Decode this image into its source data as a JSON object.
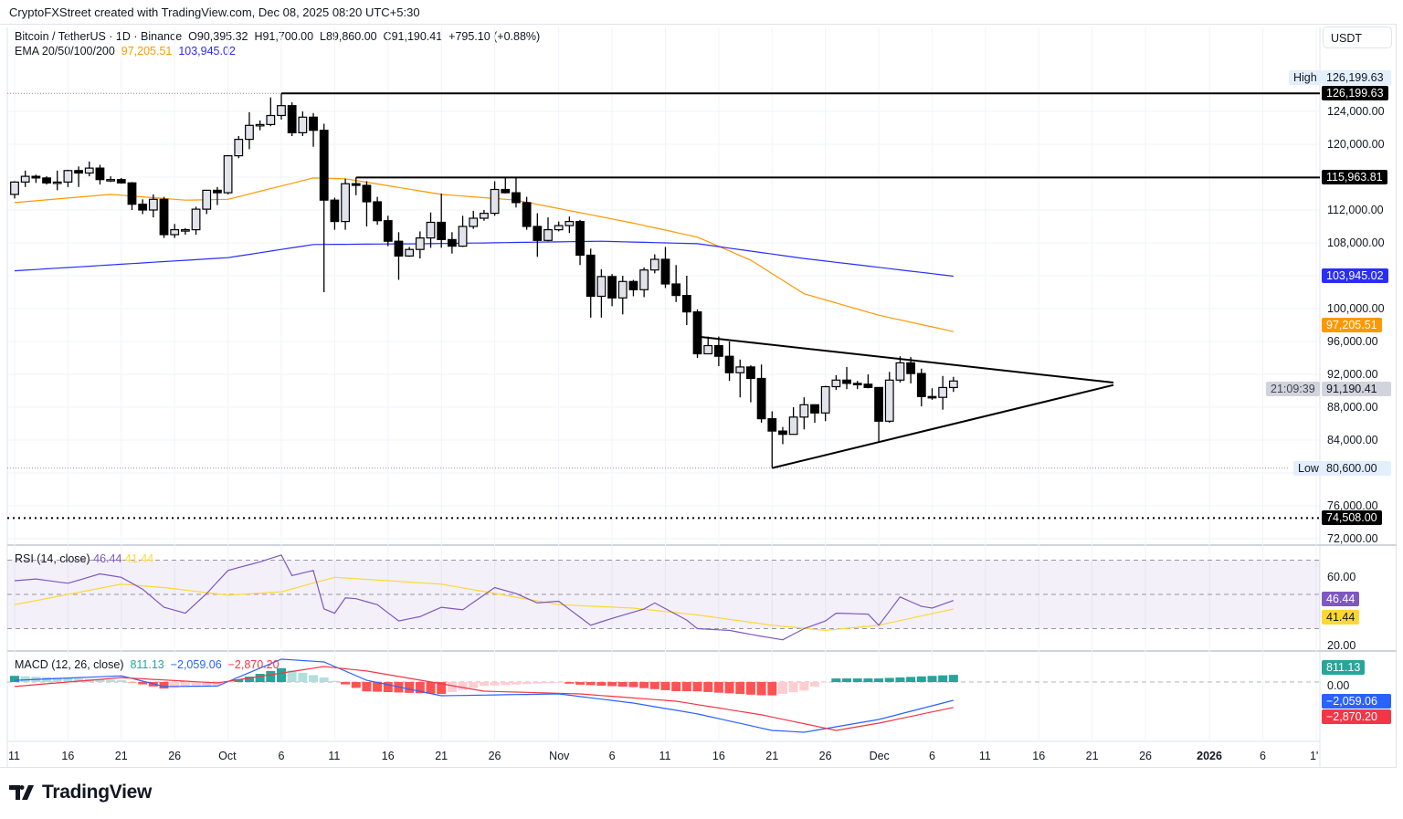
{
  "credit": "CryptoFXStreet created with TradingView.com, Dec 08, 2025 08:20 UTC+5:30",
  "legend": {
    "symbol": "Bitcoin / TetherUS · 1D · Binance",
    "open": "O90,395.32",
    "high": "H91,700.00",
    "low": "L89,860.00",
    "close": "C91,190.41",
    "change": "+795.10 (+0.88%)",
    "ema_label": "EMA 20/50/100/200",
    "ema50_value": "97,205.51",
    "ema200_value": "103,945.02"
  },
  "currency": "USDT",
  "colors": {
    "ema50": "#ff9800",
    "ema200": "#2a2ef5",
    "rsi": "#7e57c2",
    "rsi_ma": "#fdd835",
    "macd": "#2962ff",
    "signal": "#f23645",
    "hist_up_strong": "#26a69a",
    "hist_up_weak": "#b2dfdb",
    "hist_dn_strong": "#ff5252",
    "hist_dn_weak": "#ffcdd2",
    "candle_up": "#e0e3eb",
    "candle_down": "#000000"
  },
  "logo": {
    "text": "TradingView"
  },
  "chart_data": [
    {
      "type": "candlestick",
      "name": "Bitcoin / TetherUS",
      "interval": "1D",
      "start_date": "2025-09-11",
      "ylim": [
        70000,
        128000
      ],
      "y_scale": "linear",
      "grid": true,
      "price_ticks": [
        "124,000.00",
        "120,000.00",
        "112,000.00",
        "108,000.00",
        "100,000.00",
        "96,000.00",
        "92,000.00",
        "88,000.00",
        "84,000.00",
        "76,000.00",
        "72,000.00"
      ],
      "price_tick_values": [
        124000,
        120000,
        112000,
        108000,
        100000,
        96000,
        92000,
        88000,
        84000,
        76000,
        72000
      ],
      "ohlc": [
        [
          113900,
          115500,
          113400,
          115400
        ],
        [
          115400,
          116800,
          114800,
          116100
        ],
        [
          116100,
          116300,
          115300,
          115900
        ],
        [
          115900,
          116100,
          115100,
          115300
        ],
        [
          115300,
          116800,
          114400,
          115400
        ],
        [
          115400,
          116900,
          114800,
          116800
        ],
        [
          116800,
          117300,
          114800,
          116500
        ],
        [
          116500,
          117900,
          116100,
          117100
        ],
        [
          117100,
          117500,
          115100,
          115700
        ],
        [
          115700,
          116100,
          115400,
          115700
        ],
        [
          115700,
          115900,
          115200,
          115300
        ],
        [
          115300,
          115400,
          112000,
          112700
        ],
        [
          112700,
          113300,
          111500,
          112000
        ],
        [
          112000,
          113900,
          111100,
          113300
        ],
        [
          113300,
          113600,
          108600,
          109000
        ],
        [
          109000,
          110300,
          108600,
          109600
        ],
        [
          109600,
          109800,
          109000,
          109600
        ],
        [
          109600,
          112400,
          109000,
          112100
        ],
        [
          112100,
          114400,
          111500,
          114400
        ],
        [
          114400,
          114800,
          112600,
          114100
        ],
        [
          114100,
          118600,
          113900,
          118600
        ],
        [
          118600,
          121000,
          118300,
          120600
        ],
        [
          120600,
          123900,
          119400,
          122300
        ],
        [
          122300,
          122900,
          121700,
          122400
        ],
        [
          122400,
          125700,
          122200,
          123500
        ],
        [
          123500,
          126199.63,
          123000,
          124700
        ],
        [
          124700,
          125100,
          121000,
          121400
        ],
        [
          121400,
          124000,
          121000,
          123300
        ],
        [
          123300,
          123800,
          119700,
          121700
        ],
        [
          121700,
          122500,
          102000,
          113200
        ],
        [
          113200,
          113500,
          109600,
          110600
        ],
        [
          110600,
          115800,
          109600,
          115200
        ],
        [
          115200,
          115963.81,
          113800,
          115000
        ],
        [
          115000,
          115500,
          110000,
          113000
        ],
        [
          113000,
          113600,
          110200,
          110700
        ],
        [
          110700,
          111300,
          107600,
          108200
        ],
        [
          108200,
          109300,
          103500,
          106400
        ],
        [
          106400,
          107500,
          106300,
          107200
        ],
        [
          107200,
          109400,
          106100,
          108600
        ],
        [
          108600,
          111700,
          107400,
          110500
        ],
        [
          110500,
          114000,
          107400,
          108400
        ],
        [
          108400,
          109300,
          106700,
          107600
        ],
        [
          107600,
          111300,
          107500,
          110000
        ],
        [
          110000,
          111900,
          109700,
          111000
        ],
        [
          111000,
          112000,
          110700,
          111600
        ],
        [
          111600,
          115500,
          111300,
          114500
        ],
        [
          114500,
          115963.81,
          114000,
          114100
        ],
        [
          114100,
          115900,
          112300,
          112900
        ],
        [
          112900,
          113600,
          109600,
          110000
        ],
        [
          110000,
          111600,
          106300,
          108300
        ],
        [
          108300,
          111100,
          108200,
          109600
        ],
        [
          109600,
          110600,
          109400,
          110100
        ],
        [
          110100,
          111200,
          109200,
          110600
        ],
        [
          110600,
          110800,
          105300,
          106500
        ],
        [
          106500,
          107300,
          98900,
          101500
        ],
        [
          101500,
          104800,
          98900,
          103900
        ],
        [
          103900,
          104200,
          100300,
          101300
        ],
        [
          101300,
          104000,
          99300,
          103300
        ],
        [
          103300,
          103500,
          101500,
          102300
        ],
        [
          102300,
          105000,
          101400,
          104700
        ],
        [
          104700,
          106600,
          104300,
          106000
        ],
        [
          106000,
          107500,
          102500,
          103000
        ],
        [
          103000,
          105300,
          100800,
          101600
        ],
        [
          101600,
          104000,
          98000,
          99600
        ],
        [
          99600,
          99900,
          94000,
          94500
        ],
        [
          94500,
          96600,
          94600,
          95500
        ],
        [
          95500,
          96600,
          93000,
          94200
        ],
        [
          94200,
          96000,
          91200,
          92200
        ],
        [
          92200,
          93800,
          89200,
          92900
        ],
        [
          92900,
          93100,
          88600,
          91500
        ],
        [
          91500,
          93200,
          86100,
          86600
        ],
        [
          86600,
          87500,
          80600,
          85100
        ],
        [
          85100,
          85600,
          83500,
          84700
        ],
        [
          84700,
          88000,
          84700,
          86800
        ],
        [
          86800,
          89200,
          85300,
          88300
        ],
        [
          88300,
          88300,
          86100,
          87300
        ],
        [
          87300,
          90600,
          86300,
          90500
        ],
        [
          90500,
          91900,
          90100,
          91300
        ],
        [
          91300,
          92900,
          90200,
          90900
        ],
        [
          90900,
          91200,
          90200,
          90800
        ],
        [
          90800,
          92000,
          90300,
          90400
        ],
        [
          90400,
          90400,
          83800,
          86300
        ],
        [
          86300,
          92300,
          86100,
          91300
        ],
        [
          91300,
          94200,
          91000,
          93400
        ],
        [
          93400,
          94100,
          90900,
          92100
        ],
        [
          92100,
          92700,
          88100,
          89300
        ],
        [
          89300,
          90300,
          88900,
          89200
        ],
        [
          89200,
          91800,
          87700,
          90400
        ],
        [
          90395.32,
          91700,
          89860,
          91190.41
        ]
      ],
      "ema50": [
        [
          "2025-09-11",
          112900
        ],
        [
          "2025-09-20",
          113900
        ],
        [
          "2025-09-27",
          113200
        ],
        [
          "2025-10-01",
          113300
        ],
        [
          "2025-10-09",
          115900
        ],
        [
          "2025-10-12",
          115800
        ],
        [
          "2025-10-21",
          113900
        ],
        [
          "2025-10-28",
          113200
        ],
        [
          "2025-11-08",
          110400
        ],
        [
          "2025-11-14",
          108700
        ],
        [
          "2025-11-19",
          105900
        ],
        [
          "2025-11-24",
          101800
        ],
        [
          "2025-12-01",
          99200
        ],
        [
          "2025-12-08",
          97205.51
        ]
      ],
      "ema200": [
        [
          "2025-09-11",
          104600
        ],
        [
          "2025-10-01",
          106200
        ],
        [
          "2025-10-09",
          107800
        ],
        [
          "2025-10-20",
          107900
        ],
        [
          "2025-11-05",
          108200
        ],
        [
          "2025-11-14",
          107900
        ],
        [
          "2025-11-24",
          106100
        ],
        [
          "2025-12-08",
          103945.02
        ]
      ],
      "last_price": {
        "value": 91190.41,
        "label": "91,190.41",
        "countdown": "21:09:39"
      },
      "levels": [
        {
          "name": "high",
          "value": 126199.63,
          "label": "126,199.63",
          "from": "2025-10-06",
          "style": "solid",
          "text": "High"
        },
        {
          "name": "resistance",
          "value": 115963.81,
          "label": "115,963.81",
          "from": "2025-10-13",
          "style": "solid"
        },
        {
          "name": "low",
          "value": 80600,
          "label": "80,600.00",
          "style": "dotted",
          "text": "Low"
        },
        {
          "name": "support",
          "value": 74508,
          "label": "74,508.00",
          "style": "dotted"
        }
      ],
      "trendlines": [
        {
          "name": "upper-trendline",
          "from": [
            "2025-11-14",
            96600
          ],
          "to": [
            "2025-12-23",
            91000
          ]
        },
        {
          "name": "lower-trendline",
          "from": [
            "2025-11-21",
            80600
          ],
          "to": [
            "2025-12-23",
            90700
          ]
        }
      ],
      "time_axis": [
        [
          "11",
          "2025-09-11"
        ],
        [
          "16",
          "2025-09-16"
        ],
        [
          "21",
          "2025-09-21"
        ],
        [
          "26",
          "2025-09-26"
        ],
        [
          "Oct",
          "2025-10-01"
        ],
        [
          "6",
          "2025-10-06"
        ],
        [
          "11",
          "2025-10-11"
        ],
        [
          "16",
          "2025-10-16"
        ],
        [
          "21",
          "2025-10-21"
        ],
        [
          "26",
          "2025-10-26"
        ],
        [
          "Nov",
          "2025-11-01"
        ],
        [
          "6",
          "2025-11-06"
        ],
        [
          "11",
          "2025-11-11"
        ],
        [
          "16",
          "2025-11-16"
        ],
        [
          "21",
          "2025-11-21"
        ],
        [
          "26",
          "2025-11-26"
        ],
        [
          "Dec",
          "2025-12-01"
        ],
        [
          "6",
          "2025-12-06"
        ],
        [
          "11",
          "2025-12-11"
        ],
        [
          "16",
          "2025-12-16"
        ],
        [
          "21",
          "2025-12-21"
        ],
        [
          "26",
          "2025-12-26"
        ],
        [
          "2026",
          "2026-01-01"
        ],
        [
          "6",
          "2026-01-06"
        ],
        [
          "1'",
          "2026-01-11"
        ]
      ]
    },
    {
      "type": "line",
      "name": "RSI (14, close)",
      "label": "RSI (14, close)",
      "value": "46.44",
      "ma_value": "41.44",
      "ylim": [
        0,
        100
      ],
      "bands": [
        30,
        50,
        70
      ],
      "ticks": [
        "60.00",
        "20.00"
      ],
      "tick_values": [
        60,
        20
      ],
      "rsi": [
        [
          "2025-09-11",
          58
        ],
        [
          "2025-09-13",
          59
        ],
        [
          "2025-09-16",
          56.5
        ],
        [
          "2025-09-19",
          62
        ],
        [
          "2025-09-21",
          60
        ],
        [
          "2025-09-23",
          53
        ],
        [
          "2025-09-25",
          42.5
        ],
        [
          "2025-09-27",
          39
        ],
        [
          "2025-09-29",
          50.5
        ],
        [
          "2025-10-01",
          64
        ],
        [
          "2025-10-04",
          69
        ],
        [
          "2025-10-06",
          73
        ],
        [
          "2025-10-07",
          61
        ],
        [
          "2025-10-09",
          64
        ],
        [
          "2025-10-10",
          41.5
        ],
        [
          "2025-10-11",
          39
        ],
        [
          "2025-10-12",
          48
        ],
        [
          "2025-10-13",
          47.5
        ],
        [
          "2025-10-15",
          44
        ],
        [
          "2025-10-17",
          34.5
        ],
        [
          "2025-10-19",
          37
        ],
        [
          "2025-10-21",
          42.5
        ],
        [
          "2025-10-23",
          41
        ],
        [
          "2025-10-26",
          54
        ],
        [
          "2025-10-28",
          50.5
        ],
        [
          "2025-10-30",
          45
        ],
        [
          "2025-11-01",
          46
        ],
        [
          "2025-11-04",
          32
        ],
        [
          "2025-11-06",
          36
        ],
        [
          "2025-11-09",
          41.5
        ],
        [
          "2025-11-10",
          45
        ],
        [
          "2025-11-13",
          35
        ],
        [
          "2025-11-14",
          30
        ],
        [
          "2025-11-17",
          29
        ],
        [
          "2025-11-20",
          25.5
        ],
        [
          "2025-11-22",
          23.5
        ],
        [
          "2025-11-24",
          30
        ],
        [
          "2025-11-26",
          34.5
        ],
        [
          "2025-11-27",
          39
        ],
        [
          "2025-11-30",
          38.5
        ],
        [
          "2025-12-01",
          32
        ],
        [
          "2025-12-03",
          48.5
        ],
        [
          "2025-12-05",
          43
        ],
        [
          "2025-12-06",
          42
        ],
        [
          "2025-12-08",
          46.44
        ]
      ],
      "rsi_ma": [
        [
          "2025-09-11",
          44
        ],
        [
          "2025-09-21",
          56
        ],
        [
          "2025-09-25",
          54
        ],
        [
          "2025-10-01",
          49.5
        ],
        [
          "2025-10-06",
          51.5
        ],
        [
          "2025-10-11",
          60
        ],
        [
          "2025-10-21",
          56
        ],
        [
          "2025-11-01",
          44
        ],
        [
          "2025-11-08",
          42
        ],
        [
          "2025-11-14",
          38
        ],
        [
          "2025-11-21",
          32
        ],
        [
          "2025-11-26",
          29
        ],
        [
          "2025-12-01",
          32
        ],
        [
          "2025-12-08",
          41.44
        ]
      ]
    },
    {
      "type": "line+bar",
      "name": "MACD (12, 26, close)",
      "label": "MACD (12, 26, close)",
      "hist_value": "811.13",
      "macd_value": "−2,059.06",
      "signal_value": "−2,870.20",
      "ticks": [
        "0.00"
      ],
      "tick_values": [
        0
      ],
      "macd": [
        [
          "2025-09-11",
          200
        ],
        [
          "2025-09-21",
          700
        ],
        [
          "2025-09-25",
          -500
        ],
        [
          "2025-09-30",
          -450
        ],
        [
          "2025-10-06",
          2580
        ],
        [
          "2025-10-10",
          2270
        ],
        [
          "2025-10-14",
          200
        ],
        [
          "2025-10-21",
          -1550
        ],
        [
          "2025-11-01",
          -1340
        ],
        [
          "2025-11-08",
          -2370
        ],
        [
          "2025-11-14",
          -3600
        ],
        [
          "2025-11-21",
          -5460
        ],
        [
          "2025-11-24",
          -5670
        ],
        [
          "2025-12-01",
          -4230
        ],
        [
          "2025-12-08",
          -2059.06
        ]
      ],
      "signal": [
        [
          "2025-09-11",
          -500
        ],
        [
          "2025-09-21",
          500
        ],
        [
          "2025-09-30",
          -100
        ],
        [
          "2025-10-10",
          1750
        ],
        [
          "2025-10-14",
          1250
        ],
        [
          "2025-10-25",
          -1030
        ],
        [
          "2025-11-03",
          -1340
        ],
        [
          "2025-11-12",
          -2160
        ],
        [
          "2025-11-20",
          -3700
        ],
        [
          "2025-11-27",
          -5460
        ],
        [
          "2025-12-01",
          -4640
        ],
        [
          "2025-12-08",
          -2870.2
        ]
      ]
    }
  ]
}
